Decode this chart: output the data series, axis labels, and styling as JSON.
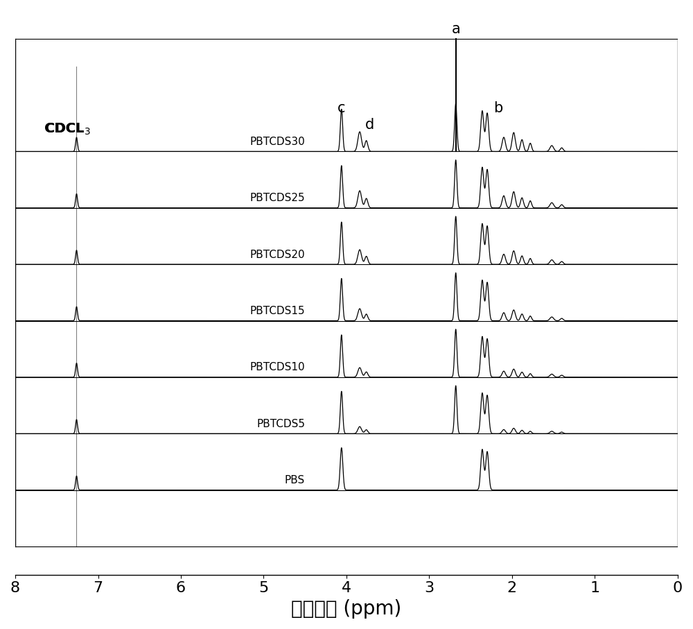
{
  "xlabel": "化学位移 (ppm)",
  "xlabel_fontsize": 20,
  "tick_fontsize": 16,
  "xticks": [
    0,
    1,
    2,
    3,
    4,
    5,
    6,
    7,
    8
  ],
  "sample_labels": [
    "PBS",
    "PBTCDS5",
    "PBTCDS10",
    "PBTCDS15",
    "PBTCDS20",
    "PBTCDS25",
    "PBTCDS30"
  ],
  "cdcl3_label": "CDCL",
  "cdcl3_ppm": 7.26,
  "peak_a_ppm": 2.68,
  "peak_b_ppm": 2.32,
  "peak_c_ppm": 4.06,
  "peak_d_ppm": 3.82,
  "background_color": "#ffffff",
  "line_color": "#000000",
  "figure_width": 10.0,
  "figure_height": 9.07
}
